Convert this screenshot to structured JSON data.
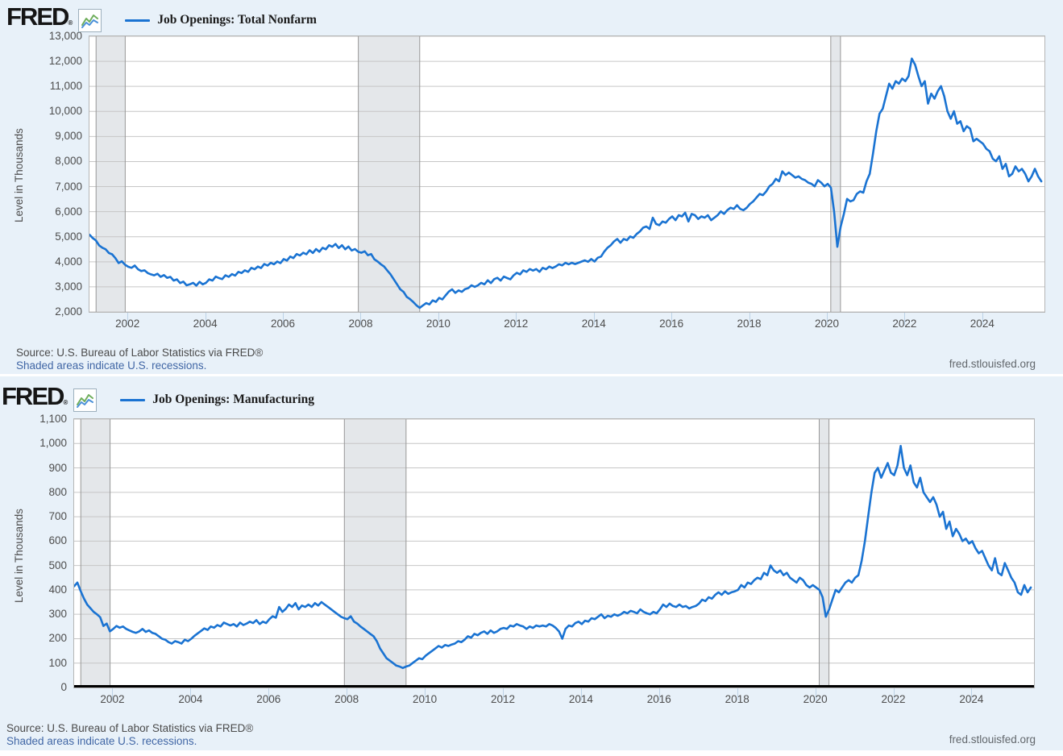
{
  "branding": {
    "logo": "FRED",
    "reg": "®"
  },
  "colors": {
    "line": "#1a73d2",
    "grid": "#c6c6c6",
    "recession_fill": "#e4e7ea",
    "recession_edge": "#979797",
    "panel_bg": "#e8f1f9",
    "plot_border": "#b6b6b6",
    "zero_axis": "#000000",
    "icon_green": "#6fae5c",
    "icon_blue": "#4a90d9"
  },
  "charts": [
    {
      "source": "Source: U.S. Bureau of Labor Statistics via FRED®",
      "recession_note": "Shaded areas indicate U.S. recessions.",
      "site": "fred.stlouisfed.org"
    },
    {
      "source": "Source: U.S. Bureau of Labor Statistics via FRED®",
      "recession_note": "Shaded areas indicate U.S. recessions.",
      "site": "fred.stlouisfed.org"
    }
  ],
  "chart_data": [
    {
      "type": "line",
      "legend": "Job Openings: Total Nonfarm",
      "ylabel": "Level in Thousands",
      "freq": "monthly",
      "x_start": 2001.0,
      "xlim": [
        2001.0,
        2025.58
      ],
      "ylim": [
        2000,
        13000
      ],
      "y_ticks": [
        2000,
        3000,
        4000,
        5000,
        6000,
        7000,
        8000,
        9000,
        10000,
        11000,
        12000,
        13000
      ],
      "x_ticks": [
        2002,
        2004,
        2006,
        2008,
        2010,
        2012,
        2014,
        2016,
        2018,
        2020,
        2022,
        2024
      ],
      "recessions": [
        [
          2001.17,
          2001.92
        ],
        [
          2007.92,
          2009.5
        ],
        [
          2020.08,
          2020.33
        ]
      ],
      "zero_axis": false,
      "grid": true,
      "legend_position": "top",
      "series": [
        {
          "name": "Job Openings: Total Nonfarm",
          "values": [
            5080,
            4950,
            4850,
            4650,
            4560,
            4500,
            4350,
            4300,
            4150,
            3950,
            4020,
            3880,
            3800,
            3760,
            3850,
            3700,
            3630,
            3660,
            3550,
            3500,
            3460,
            3520,
            3400,
            3470,
            3360,
            3400,
            3250,
            3300,
            3150,
            3210,
            3060,
            3100,
            3160,
            3050,
            3200,
            3100,
            3160,
            3300,
            3250,
            3410,
            3350,
            3310,
            3460,
            3400,
            3510,
            3450,
            3600,
            3550,
            3660,
            3600,
            3760,
            3700,
            3810,
            3750,
            3910,
            3850,
            3960,
            3900,
            4010,
            3950,
            4110,
            4050,
            4210,
            4150,
            4310,
            4250,
            4360,
            4300,
            4460,
            4350,
            4510,
            4400,
            4560,
            4500,
            4660,
            4600,
            4710,
            4550,
            4660,
            4500,
            4610,
            4450,
            4510,
            4400,
            4360,
            4420,
            4260,
            4310,
            4100,
            4010,
            3900,
            3810,
            3650,
            3500,
            3300,
            3100,
            2900,
            2800,
            2600,
            2510,
            2400,
            2260,
            2160,
            2260,
            2350,
            2300,
            2460,
            2400,
            2560,
            2500,
            2660,
            2810,
            2900,
            2760,
            2860,
            2800,
            2910,
            2950,
            3060,
            3000,
            3060,
            3160,
            3100,
            3260,
            3150,
            3310,
            3360,
            3250,
            3410,
            3350,
            3300,
            3460,
            3560,
            3500,
            3660,
            3600,
            3710,
            3650,
            3710,
            3600,
            3760,
            3700,
            3810,
            3750,
            3810,
            3900,
            3860,
            3960,
            3900,
            3960,
            3910,
            3960,
            4010,
            4060,
            4000,
            4110,
            4010,
            4160,
            4210,
            4410,
            4560,
            4660,
            4810,
            4910,
            4760,
            4910,
            4860,
            5010,
            4960,
            5110,
            5210,
            5360,
            5410,
            5310,
            5760,
            5510,
            5460,
            5610,
            5560,
            5710,
            5810,
            5660,
            5860,
            5810,
            5960,
            5610,
            5910,
            5860,
            5710,
            5810,
            5760,
            5860,
            5660,
            5760,
            5860,
            6010,
            5910,
            6060,
            6160,
            6110,
            6260,
            6110,
            6060,
            6160,
            6310,
            6410,
            6560,
            6710,
            6660,
            6810,
            7010,
            7110,
            7310,
            7210,
            7610,
            7460,
            7560,
            7460,
            7360,
            7410,
            7310,
            7260,
            7160,
            7110,
            7010,
            7260,
            7160,
            7010,
            7110,
            6960,
            6000,
            4600,
            5400,
            5910,
            6510,
            6410,
            6460,
            6710,
            6810,
            6760,
            7210,
            7510,
            8310,
            9210,
            9910,
            10110,
            10610,
            11110,
            10910,
            11210,
            11110,
            11310,
            11210,
            11410,
            12110,
            11860,
            11410,
            11010,
            11210,
            10310,
            10710,
            10510,
            10810,
            11010,
            10610,
            10010,
            9710,
            10010,
            9510,
            9610,
            9210,
            9410,
            9310,
            8810,
            8910,
            8810,
            8710,
            8510,
            8410,
            8110,
            8010,
            8210,
            7710,
            7910,
            7410,
            7510,
            7810,
            7610,
            7710,
            7510,
            7210,
            7410,
            7710,
            7410,
            7210
          ]
        }
      ]
    },
    {
      "type": "line",
      "legend": "Job Openings: Manufacturing",
      "ylabel": "Level in Thousands",
      "freq": "monthly",
      "x_start": 2001.0,
      "xlim": [
        2001.0,
        2025.58
      ],
      "ylim": [
        0,
        1100
      ],
      "y_ticks": [
        0,
        100,
        200,
        300,
        400,
        500,
        600,
        700,
        800,
        900,
        1000,
        1100
      ],
      "x_ticks": [
        2002,
        2004,
        2006,
        2008,
        2010,
        2012,
        2014,
        2016,
        2018,
        2020,
        2022,
        2024
      ],
      "recessions": [
        [
          2001.17,
          2001.92
        ],
        [
          2007.92,
          2009.5
        ],
        [
          2020.08,
          2020.33
        ]
      ],
      "zero_axis": true,
      "grid": true,
      "legend_position": "top",
      "series": [
        {
          "name": "Job Openings: Manufacturing",
          "values": [
            415,
            430,
            395,
            365,
            340,
            325,
            310,
            300,
            288,
            252,
            262,
            230,
            240,
            252,
            245,
            250,
            240,
            234,
            228,
            224,
            230,
            240,
            228,
            234,
            224,
            220,
            210,
            200,
            196,
            186,
            180,
            190,
            186,
            180,
            196,
            190,
            200,
            212,
            222,
            232,
            242,
            236,
            250,
            245,
            256,
            250,
            266,
            260,
            254,
            260,
            250,
            266,
            256,
            262,
            270,
            264,
            276,
            260,
            270,
            264,
            280,
            292,
            286,
            330,
            310,
            322,
            340,
            330,
            346,
            320,
            336,
            330,
            340,
            330,
            346,
            336,
            350,
            340,
            330,
            320,
            310,
            300,
            290,
            284,
            280,
            292,
            270,
            262,
            250,
            240,
            230,
            220,
            210,
            190,
            160,
            140,
            120,
            110,
            100,
            90,
            86,
            80,
            86,
            90,
            100,
            110,
            120,
            116,
            130,
            140,
            150,
            160,
            170,
            164,
            174,
            170,
            176,
            180,
            190,
            186,
            196,
            210,
            204,
            220,
            214,
            224,
            230,
            220,
            234,
            224,
            230,
            240,
            244,
            240,
            254,
            250,
            260,
            254,
            250,
            240,
            250,
            244,
            254,
            250,
            254,
            250,
            260,
            254,
            244,
            230,
            200,
            240,
            254,
            250,
            264,
            270,
            260,
            274,
            270,
            284,
            280,
            290,
            300,
            284,
            294,
            290,
            300,
            294,
            300,
            310,
            304,
            314,
            310,
            304,
            320,
            310,
            304,
            300,
            310,
            304,
            320,
            340,
            330,
            344,
            334,
            330,
            340,
            330,
            334,
            324,
            330,
            334,
            344,
            360,
            354,
            370,
            364,
            380,
            390,
            380,
            394,
            384,
            390,
            394,
            400,
            420,
            410,
            430,
            424,
            440,
            450,
            444,
            470,
            460,
            500,
            480,
            470,
            480,
            460,
            470,
            450,
            440,
            430,
            450,
            440,
            420,
            410,
            420,
            410,
            400,
            370,
            290,
            320,
            360,
            400,
            390,
            410,
            430,
            440,
            430,
            450,
            460,
            520,
            600,
            700,
            800,
            880,
            900,
            860,
            890,
            920,
            880,
            870,
            910,
            990,
            900,
            870,
            910,
            840,
            820,
            860,
            800,
            780,
            760,
            780,
            750,
            700,
            720,
            650,
            680,
            620,
            650,
            630,
            600,
            610,
            590,
            600,
            570,
            550,
            560,
            530,
            500,
            480,
            530,
            470,
            460,
            510,
            480,
            450,
            430,
            390,
            380,
            420,
            390,
            410
          ]
        }
      ]
    }
  ]
}
